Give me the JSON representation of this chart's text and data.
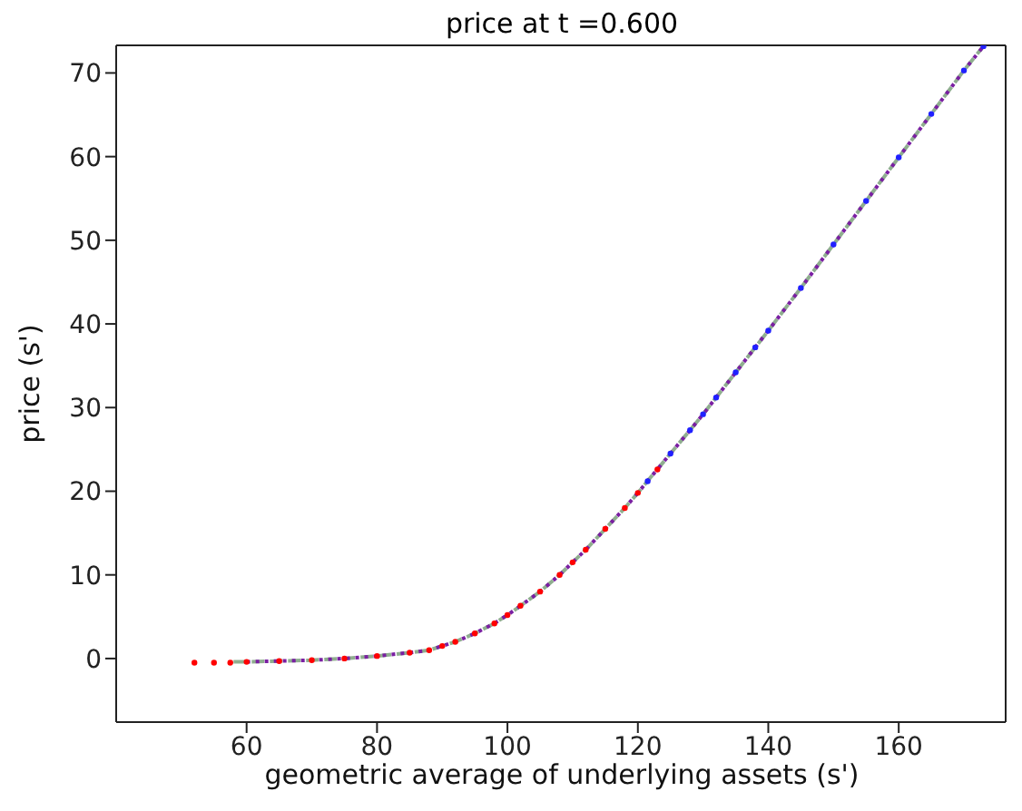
{
  "chart_data": {
    "type": "scatter",
    "title": "price at t =0.600",
    "xlabel": "geometric average of underlying assets (s')",
    "ylabel": "price  (s')",
    "xlim": [
      40,
      176.4
    ],
    "xticks": [
      60,
      80,
      100,
      120,
      140,
      160
    ],
    "ylim": [
      -7.6,
      73.3
    ],
    "yticks": [
      0,
      10,
      20,
      30,
      40,
      50,
      60,
      70
    ],
    "series": [
      {
        "type": "scatter",
        "color": "#ff0000",
        "marker": "circle",
        "x": [
          52,
          55,
          57.5,
          60,
          65,
          70,
          75,
          80,
          85,
          88,
          90,
          92,
          95,
          98,
          100,
          102,
          105,
          108,
          110,
          112,
          115,
          118,
          120,
          123
        ],
        "values": [
          -0.5,
          -0.5,
          -0.5,
          -0.4,
          -0.3,
          -0.2,
          0,
          0.3,
          0.7,
          1.0,
          1.5,
          2.0,
          3.0,
          4.2,
          5.2,
          6.3,
          8.0,
          10.0,
          11.5,
          13.0,
          15.5,
          18.0,
          19.8,
          22.6
        ]
      },
      {
        "color": "#2020ff",
        "marker": "circle",
        "x": [
          121.5,
          125,
          128,
          130,
          132,
          135,
          138,
          140,
          145,
          150,
          155,
          160,
          165,
          170,
          173
        ],
        "values": [
          21.2,
          24.5,
          27.3,
          29.2,
          31.2,
          34.2,
          37.2,
          39.2,
          44.3,
          49.5,
          54.7,
          59.9,
          65.1,
          70.3,
          73.2
        ]
      },
      {
        "type": "line",
        "color": "#8fae8f",
        "marker": "none",
        "line_style": "dashed",
        "x": [
          58,
          60,
          65,
          70,
          75,
          80,
          85,
          88,
          90,
          92,
          95,
          98,
          100,
          102,
          105,
          108,
          110,
          112,
          115,
          118,
          120,
          122,
          125,
          128,
          130,
          132,
          135,
          138,
          140,
          145,
          150,
          155,
          160,
          165,
          170,
          173
        ],
        "values": [
          -0.4,
          -0.4,
          -0.3,
          -0.2,
          0,
          0.3,
          0.7,
          1.0,
          1.5,
          2.0,
          3.0,
          4.2,
          5.2,
          6.3,
          8.0,
          10.0,
          11.5,
          13.0,
          15.5,
          18.0,
          19.8,
          21.7,
          24.5,
          27.3,
          29.2,
          31.2,
          34.2,
          37.2,
          39.2,
          44.3,
          49.5,
          54.7,
          59.9,
          65.1,
          70.3,
          73.2
        ]
      },
      {
        "type": "line",
        "color": "#7a1fa2",
        "marker": "none",
        "line_style": "dotted",
        "x": [
          60,
          65,
          70,
          75,
          80,
          85,
          88,
          90,
          92,
          95,
          98,
          100,
          102,
          105,
          108,
          110,
          112,
          115,
          118,
          120,
          122,
          125,
          128,
          130,
          132,
          135,
          138,
          140,
          145,
          150,
          155,
          160,
          165,
          170,
          173
        ],
        "values": [
          -0.4,
          -0.3,
          -0.2,
          0,
          0.3,
          0.7,
          1.0,
          1.5,
          2.0,
          3.0,
          4.2,
          5.2,
          6.3,
          8.0,
          10.0,
          11.5,
          13.0,
          15.5,
          18.0,
          19.8,
          21.7,
          24.5,
          27.3,
          29.2,
          31.2,
          34.2,
          37.2,
          39.2,
          44.3,
          49.5,
          54.7,
          59.9,
          65.1,
          70.3,
          73.2
        ]
      }
    ]
  }
}
